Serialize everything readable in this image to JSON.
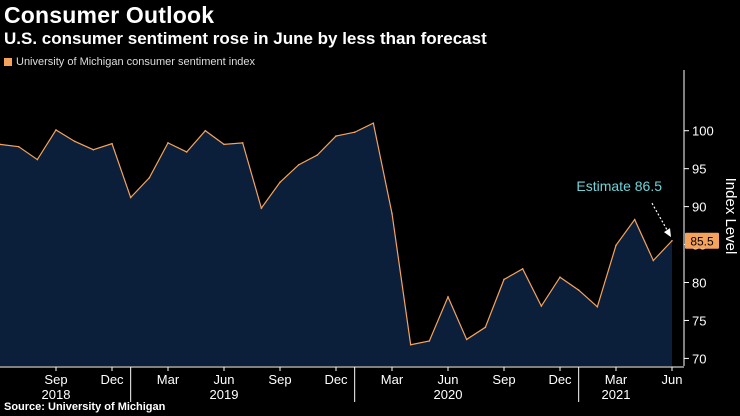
{
  "title": "Consumer Outlook",
  "subtitle": "U.S. consumer sentiment rose in June by less than forecast",
  "legend_label": "University of Michigan consumer sentiment index",
  "source": "Source: University of Michigan",
  "colors": {
    "line": "#f5a35c",
    "area": "#0c1f3a",
    "annotation": "#6fd3d8",
    "background": "#000000"
  },
  "chart_data": {
    "type": "area",
    "title": "Consumer Outlook",
    "ylabel": "Index Level",
    "ylim": [
      69,
      108
    ],
    "yticks": [
      70,
      75,
      80,
      85,
      90,
      95,
      100
    ],
    "x": [
      "2018-06",
      "2018-07",
      "2018-08",
      "2018-09",
      "2018-10",
      "2018-11",
      "2018-12",
      "2019-01",
      "2019-02",
      "2019-03",
      "2019-04",
      "2019-05",
      "2019-06",
      "2019-07",
      "2019-08",
      "2019-09",
      "2019-10",
      "2019-11",
      "2019-12",
      "2020-01",
      "2020-02",
      "2020-03",
      "2020-04",
      "2020-05",
      "2020-06",
      "2020-07",
      "2020-08",
      "2020-09",
      "2020-10",
      "2020-11",
      "2020-12",
      "2021-01",
      "2021-02",
      "2021-03",
      "2021-04",
      "2021-05",
      "2021-06"
    ],
    "values": [
      98.2,
      97.9,
      96.2,
      100.1,
      98.6,
      97.5,
      98.3,
      91.2,
      93.8,
      98.4,
      97.2,
      100.0,
      98.2,
      98.4,
      89.8,
      93.2,
      95.5,
      96.8,
      99.3,
      99.8,
      101.0,
      89.1,
      71.8,
      72.3,
      78.1,
      72.5,
      74.1,
      80.4,
      81.8,
      76.9,
      80.7,
      79.0,
      76.8,
      84.9,
      88.3,
      82.9,
      85.5
    ],
    "x_tick_labels": [
      "Sep",
      "Dec",
      "Mar",
      "Jun",
      "Sep",
      "Dec",
      "Mar",
      "Jun",
      "Sep",
      "Dec",
      "Mar",
      "Jun"
    ],
    "x_tick_months": [
      "2018-09",
      "2018-12",
      "2019-03",
      "2019-06",
      "2019-09",
      "2019-12",
      "2020-03",
      "2020-06",
      "2020-09",
      "2020-12",
      "2021-03",
      "2021-06"
    ],
    "year_labels": [
      {
        "label": "2018",
        "month": "2018-09"
      },
      {
        "label": "2019",
        "month": "2019-06"
      },
      {
        "label": "2020",
        "month": "2020-06"
      },
      {
        "label": "2021",
        "month": "2021-03"
      }
    ],
    "last_value_label": "85.5",
    "annotation": {
      "text": "Estimate 86.5",
      "value": 86.5
    }
  }
}
